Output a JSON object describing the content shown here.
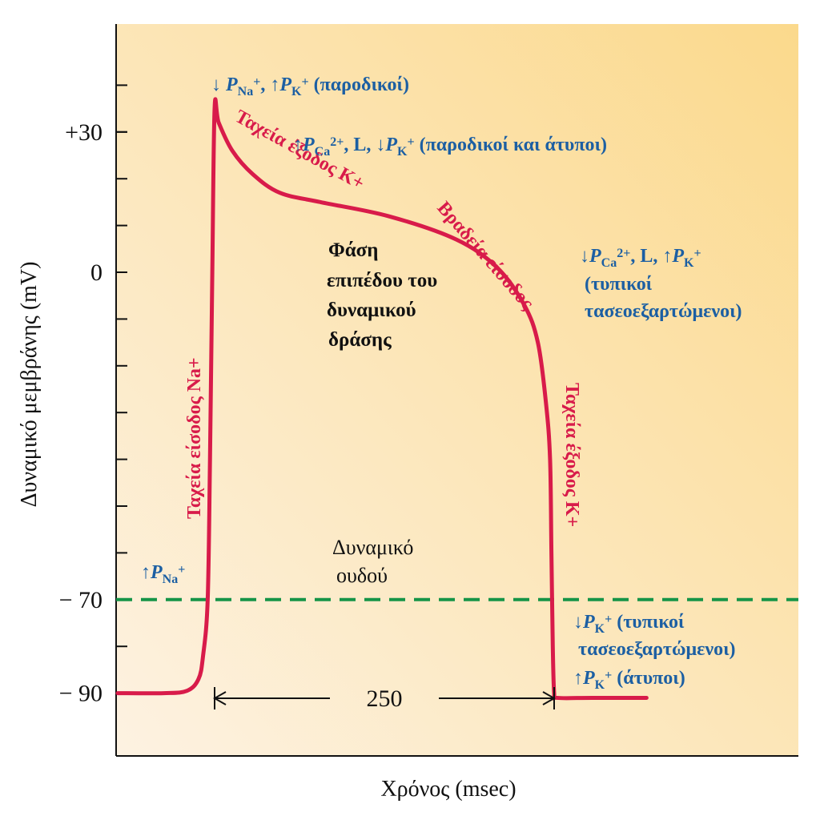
{
  "chart_data": {
    "type": "line",
    "xlabel": "Χρόνος (msec)",
    "ylabel": "Δυναμικό μεμβράνης (mV)",
    "ylim": [
      -100,
      50
    ],
    "yticks": [
      {
        "value": 30,
        "label": "+30"
      },
      {
        "value": 0,
        "label": "0"
      },
      {
        "value": -70,
        "label": "− 70"
      },
      {
        "value": -90,
        "label": "− 90"
      }
    ],
    "minor_tick_step": 10,
    "series": [
      {
        "color": "#d81b4a",
        "points": [
          [
            -20,
            -90
          ],
          [
            0,
            -90
          ],
          [
            10,
            -89.5
          ],
          [
            15,
            -87
          ],
          [
            17,
            -82
          ],
          [
            19,
            -70
          ],
          [
            20,
            -40
          ],
          [
            21,
            0
          ],
          [
            22,
            35
          ],
          [
            25,
            32
          ],
          [
            35,
            26
          ],
          [
            50,
            21
          ],
          [
            70,
            17
          ],
          [
            100,
            15
          ],
          [
            150,
            12
          ],
          [
            200,
            7
          ],
          [
            230,
            1
          ],
          [
            250,
            -7
          ],
          [
            260,
            -15
          ],
          [
            266,
            -28
          ],
          [
            269,
            -40
          ],
          [
            270,
            -60
          ],
          [
            271,
            -80
          ],
          [
            272,
            -90
          ],
          [
            274,
            -91
          ],
          [
            300,
            -91
          ],
          [
            340,
            -91
          ]
        ]
      }
    ],
    "threshold": {
      "value": -70,
      "color": "#159447",
      "style": "dashed"
    },
    "duration_marker": {
      "from": 22,
      "to": 272,
      "label": "250"
    },
    "curve_labels": {
      "rise": "Ταχεία είσοδος Na+",
      "early": "Ταχεία έξοδος K+",
      "plateau": "Βραδεία είσοδος",
      "fall": "Ταχεία έξοδος K+"
    },
    "annotations": {
      "peak": {
        "arrow1": "↓",
        "p": "P",
        "ion1": "Na",
        "sup1": "+",
        "sep": ",",
        "arrow2": "↑",
        "ion2": "K",
        "sup2": "+",
        "tail": "(παροδικοί)"
      },
      "plateau": {
        "arrow1": "↑",
        "p": "P",
        "ion1": "Ca",
        "sup1": "2+",
        "mid": ", L,",
        "arrow2": "↓",
        "ion2": "K",
        "sup2": "+",
        "tail": "(παροδικοί και άτυποι)"
      },
      "repol": {
        "arrow1": "↓",
        "p": "P",
        "ion1": "Ca",
        "sup1": "2+",
        "mid": ", L,",
        "arrow2": "↑",
        "ion2": "K",
        "sup2": "+",
        "line2": "(τυπικοί",
        "line3": "τασεοεξαρτώμενοι)"
      },
      "rest_na": {
        "arrow": "↑",
        "p": "P",
        "ion": "Na",
        "sup": "+"
      },
      "rest_k": {
        "arrow1": "↓",
        "p": "P",
        "ion": "K",
        "sup": "+",
        "tail1": "(τυπικοί",
        "line2": "τασεοεξαρτώμενοι)",
        "arrow2": "↑",
        "tail2": "(άτυποι)"
      },
      "threshold_label": [
        "Δυναμικό",
        "ουδού"
      ],
      "phase_label": [
        "Φάση",
        "επιπέδου του",
        "δυναμικού",
        "δράσης"
      ]
    },
    "colors": {
      "curve": "#d81b4a",
      "threshold": "#159447",
      "annotation": "#1c5fa3",
      "background_from": "#fdeed8",
      "background_to": "#fbd98c"
    }
  }
}
